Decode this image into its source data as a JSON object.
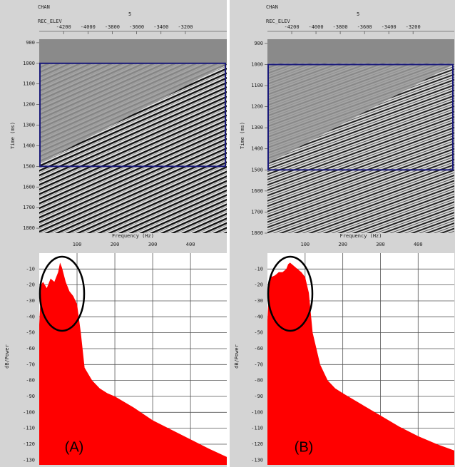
{
  "panel_labels": [
    "(A)",
    "(B)"
  ],
  "sections": [
    {
      "header": [
        "CHAN",
        "REC_ELEV"
      ],
      "marker": "5",
      "time_label": "Time (ms)",
      "offsets": [
        -4200,
        -4000,
        -3800,
        -3600,
        -3400,
        -3200
      ],
      "offset_lim": [
        -4400,
        -2860
      ],
      "time_ticks": [
        900,
        1000,
        1100,
        1200,
        1300,
        1400,
        1500,
        1600,
        1700,
        1800
      ],
      "time_lim": [
        883,
        1824
      ],
      "window": [
        1000,
        1500
      ]
    },
    {
      "header": [
        "CHAN",
        "REC_ELEV"
      ],
      "marker": "5",
      "time_label": "Time (ms)",
      "offsets": [
        -4200,
        -4000,
        -3800,
        -3600,
        -3400,
        -3200
      ],
      "offset_lim": [
        -4400,
        -2860
      ],
      "time_ticks": [
        900,
        1000,
        1100,
        1200,
        1300,
        1400,
        1500,
        1600,
        1700,
        1800
      ],
      "time_lim": [
        880,
        1800
      ],
      "window": [
        1000,
        1500
      ]
    }
  ],
  "chart_data": [
    {
      "type": "area",
      "x_label": "Frequency (Hz)",
      "y_label": "dB/Power",
      "color": "#ff0000",
      "x": [
        0,
        5,
        10,
        20,
        30,
        40,
        50,
        55,
        60,
        70,
        80,
        90,
        100,
        110,
        120,
        140,
        160,
        180,
        200,
        250,
        300,
        350,
        400,
        450,
        496
      ],
      "values": [
        -45,
        -20,
        -18,
        -22,
        -16,
        -18,
        -12,
        -6,
        -9,
        -18,
        -24,
        -27,
        -32,
        -50,
        -72,
        -80,
        -85,
        -88,
        -90,
        -97,
        -105,
        -111,
        -117,
        -123,
        -128
      ],
      "xlim": [
        0,
        496
      ],
      "ylim": [
        -133,
        0
      ],
      "xticks": [
        100,
        200,
        300,
        400
      ],
      "yticks": [
        -10,
        -20,
        -30,
        -40,
        -50,
        -60,
        -70,
        -80,
        -90,
        -100,
        -110,
        -120,
        -130
      ],
      "grid": true
    },
    {
      "type": "area",
      "x_label": "Frequency (Hz)",
      "y_label": "dB/Power",
      "color": "#ff0000",
      "x": [
        0,
        5,
        10,
        20,
        30,
        40,
        50,
        55,
        60,
        70,
        80,
        90,
        100,
        110,
        120,
        140,
        160,
        180,
        200,
        250,
        300,
        350,
        400,
        450,
        496
      ],
      "values": [
        -42,
        -18,
        -15,
        -14,
        -12,
        -12,
        -10,
        -7,
        -6,
        -8,
        -10,
        -12,
        -15,
        -25,
        -50,
        -70,
        -80,
        -85,
        -88,
        -95,
        -102,
        -109,
        -115,
        -120,
        -124
      ],
      "xlim": [
        0,
        496
      ],
      "ylim": [
        -133,
        0
      ],
      "xticks": [
        100,
        200,
        300,
        400
      ],
      "yticks": [
        -10,
        -20,
        -30,
        -40,
        -50,
        -60,
        -70,
        -80,
        -90,
        -100,
        -110,
        -120,
        -130
      ],
      "grid": true
    }
  ]
}
